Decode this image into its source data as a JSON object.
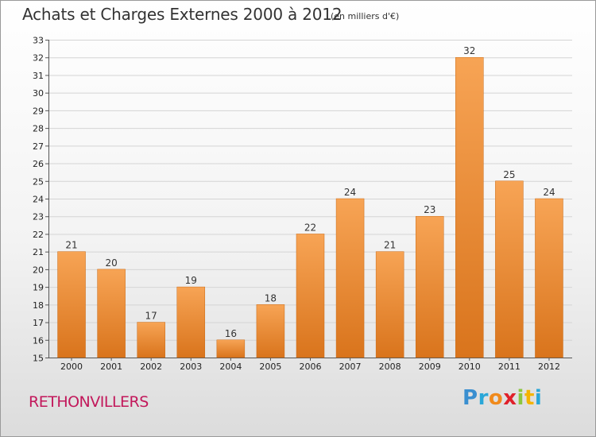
{
  "header": {
    "title": "Achats et Charges Externes 2000 à 2012",
    "subtitle": "(en milliers d'€)"
  },
  "footer": {
    "town": "RETHONVILLERS",
    "brand": "Proxiti"
  },
  "colors": {
    "bar_top": "#f7a455",
    "bar_bottom": "#d9741c",
    "bar_edge": "#c96a16",
    "town": "#c2185b"
  },
  "chart_data": {
    "type": "bar",
    "title": "Achats et Charges Externes 2000 à 2012",
    "subtitle": "(en milliers d'€)",
    "xlabel": "",
    "ylabel": "",
    "categories": [
      "2000",
      "2001",
      "2002",
      "2003",
      "2004",
      "2005",
      "2006",
      "2007",
      "2008",
      "2009",
      "2010",
      "2011",
      "2012"
    ],
    "values": [
      21,
      20,
      17,
      19,
      16,
      18,
      22,
      24,
      21,
      23,
      32,
      25,
      24
    ],
    "ylim": [
      15,
      33
    ],
    "yticks": [
      15,
      16,
      17,
      18,
      19,
      20,
      21,
      22,
      23,
      24,
      25,
      26,
      27,
      28,
      29,
      30,
      31,
      32,
      33
    ],
    "grid": true,
    "legend": "none"
  }
}
